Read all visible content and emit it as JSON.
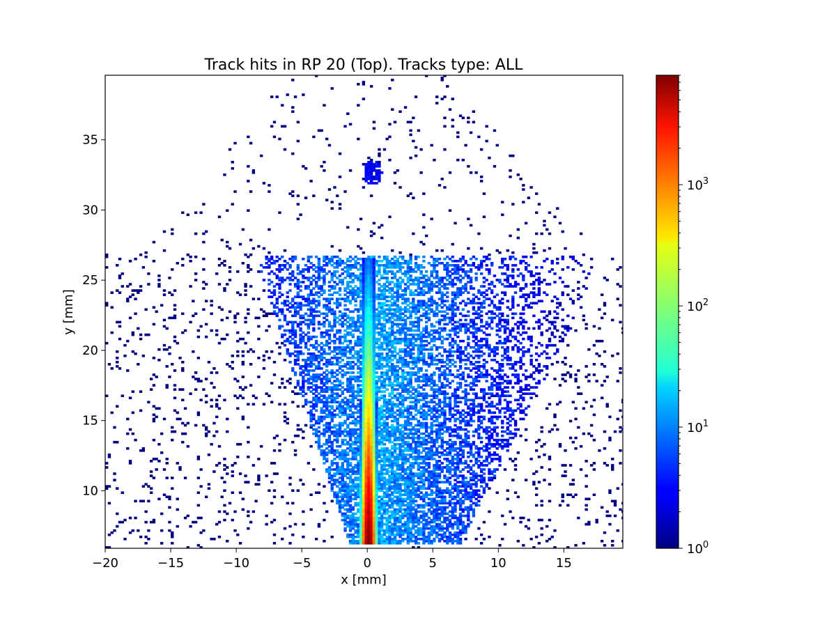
{
  "chart_data": {
    "type": "heatmap",
    "title": "Track hits in RP 20 (Top). Tracks type: ALL",
    "xlabel": "x [mm]",
    "ylabel": "y [mm]",
    "xlim": [
      -20,
      19.5
    ],
    "ylim": [
      5.9,
      39.6
    ],
    "x_ticks": [
      -20,
      -15,
      -10,
      -5,
      0,
      5,
      10,
      15
    ],
    "x_tick_labels": [
      "−20",
      "−15",
      "−10",
      "−5",
      "0",
      "5",
      "10",
      "15"
    ],
    "y_ticks": [
      10,
      15,
      20,
      25,
      30,
      35
    ],
    "y_tick_labels": [
      "10",
      "15",
      "20",
      "25",
      "30",
      "35"
    ],
    "colorbar": {
      "scale": "log",
      "colormap": "jet",
      "range": [
        1,
        8000
      ],
      "ticks": [
        {
          "value": 1,
          "base": "10",
          "exp": "0"
        },
        {
          "value": 10,
          "base": "10",
          "exp": "1"
        },
        {
          "value": 100,
          "base": "10",
          "exp": "2"
        },
        {
          "value": 1000,
          "base": "10",
          "exp": "3"
        }
      ]
    },
    "features": [
      {
        "name": "dense vertical band",
        "x_center": 0.0,
        "y_range": [
          6.2,
          26.5
        ],
        "half_width_bottom": 0.7,
        "half_width_top": 0.5,
        "peak_counts": 8000
      },
      {
        "name": "diffuse cloud right of band",
        "x_range": [
          -8,
          18
        ],
        "y_range": [
          6.2,
          26.8
        ],
        "typical_counts": 3
      },
      {
        "name": "isolated spot",
        "x_center": 0.3,
        "y_center": 32.6,
        "typical_counts": 2
      },
      {
        "name": "sparse halo",
        "x_range": [
          -20,
          19.5
        ],
        "y_range": [
          6.2,
          39.6
        ],
        "typical_counts": 1
      }
    ],
    "grid": false,
    "legend": "none"
  }
}
